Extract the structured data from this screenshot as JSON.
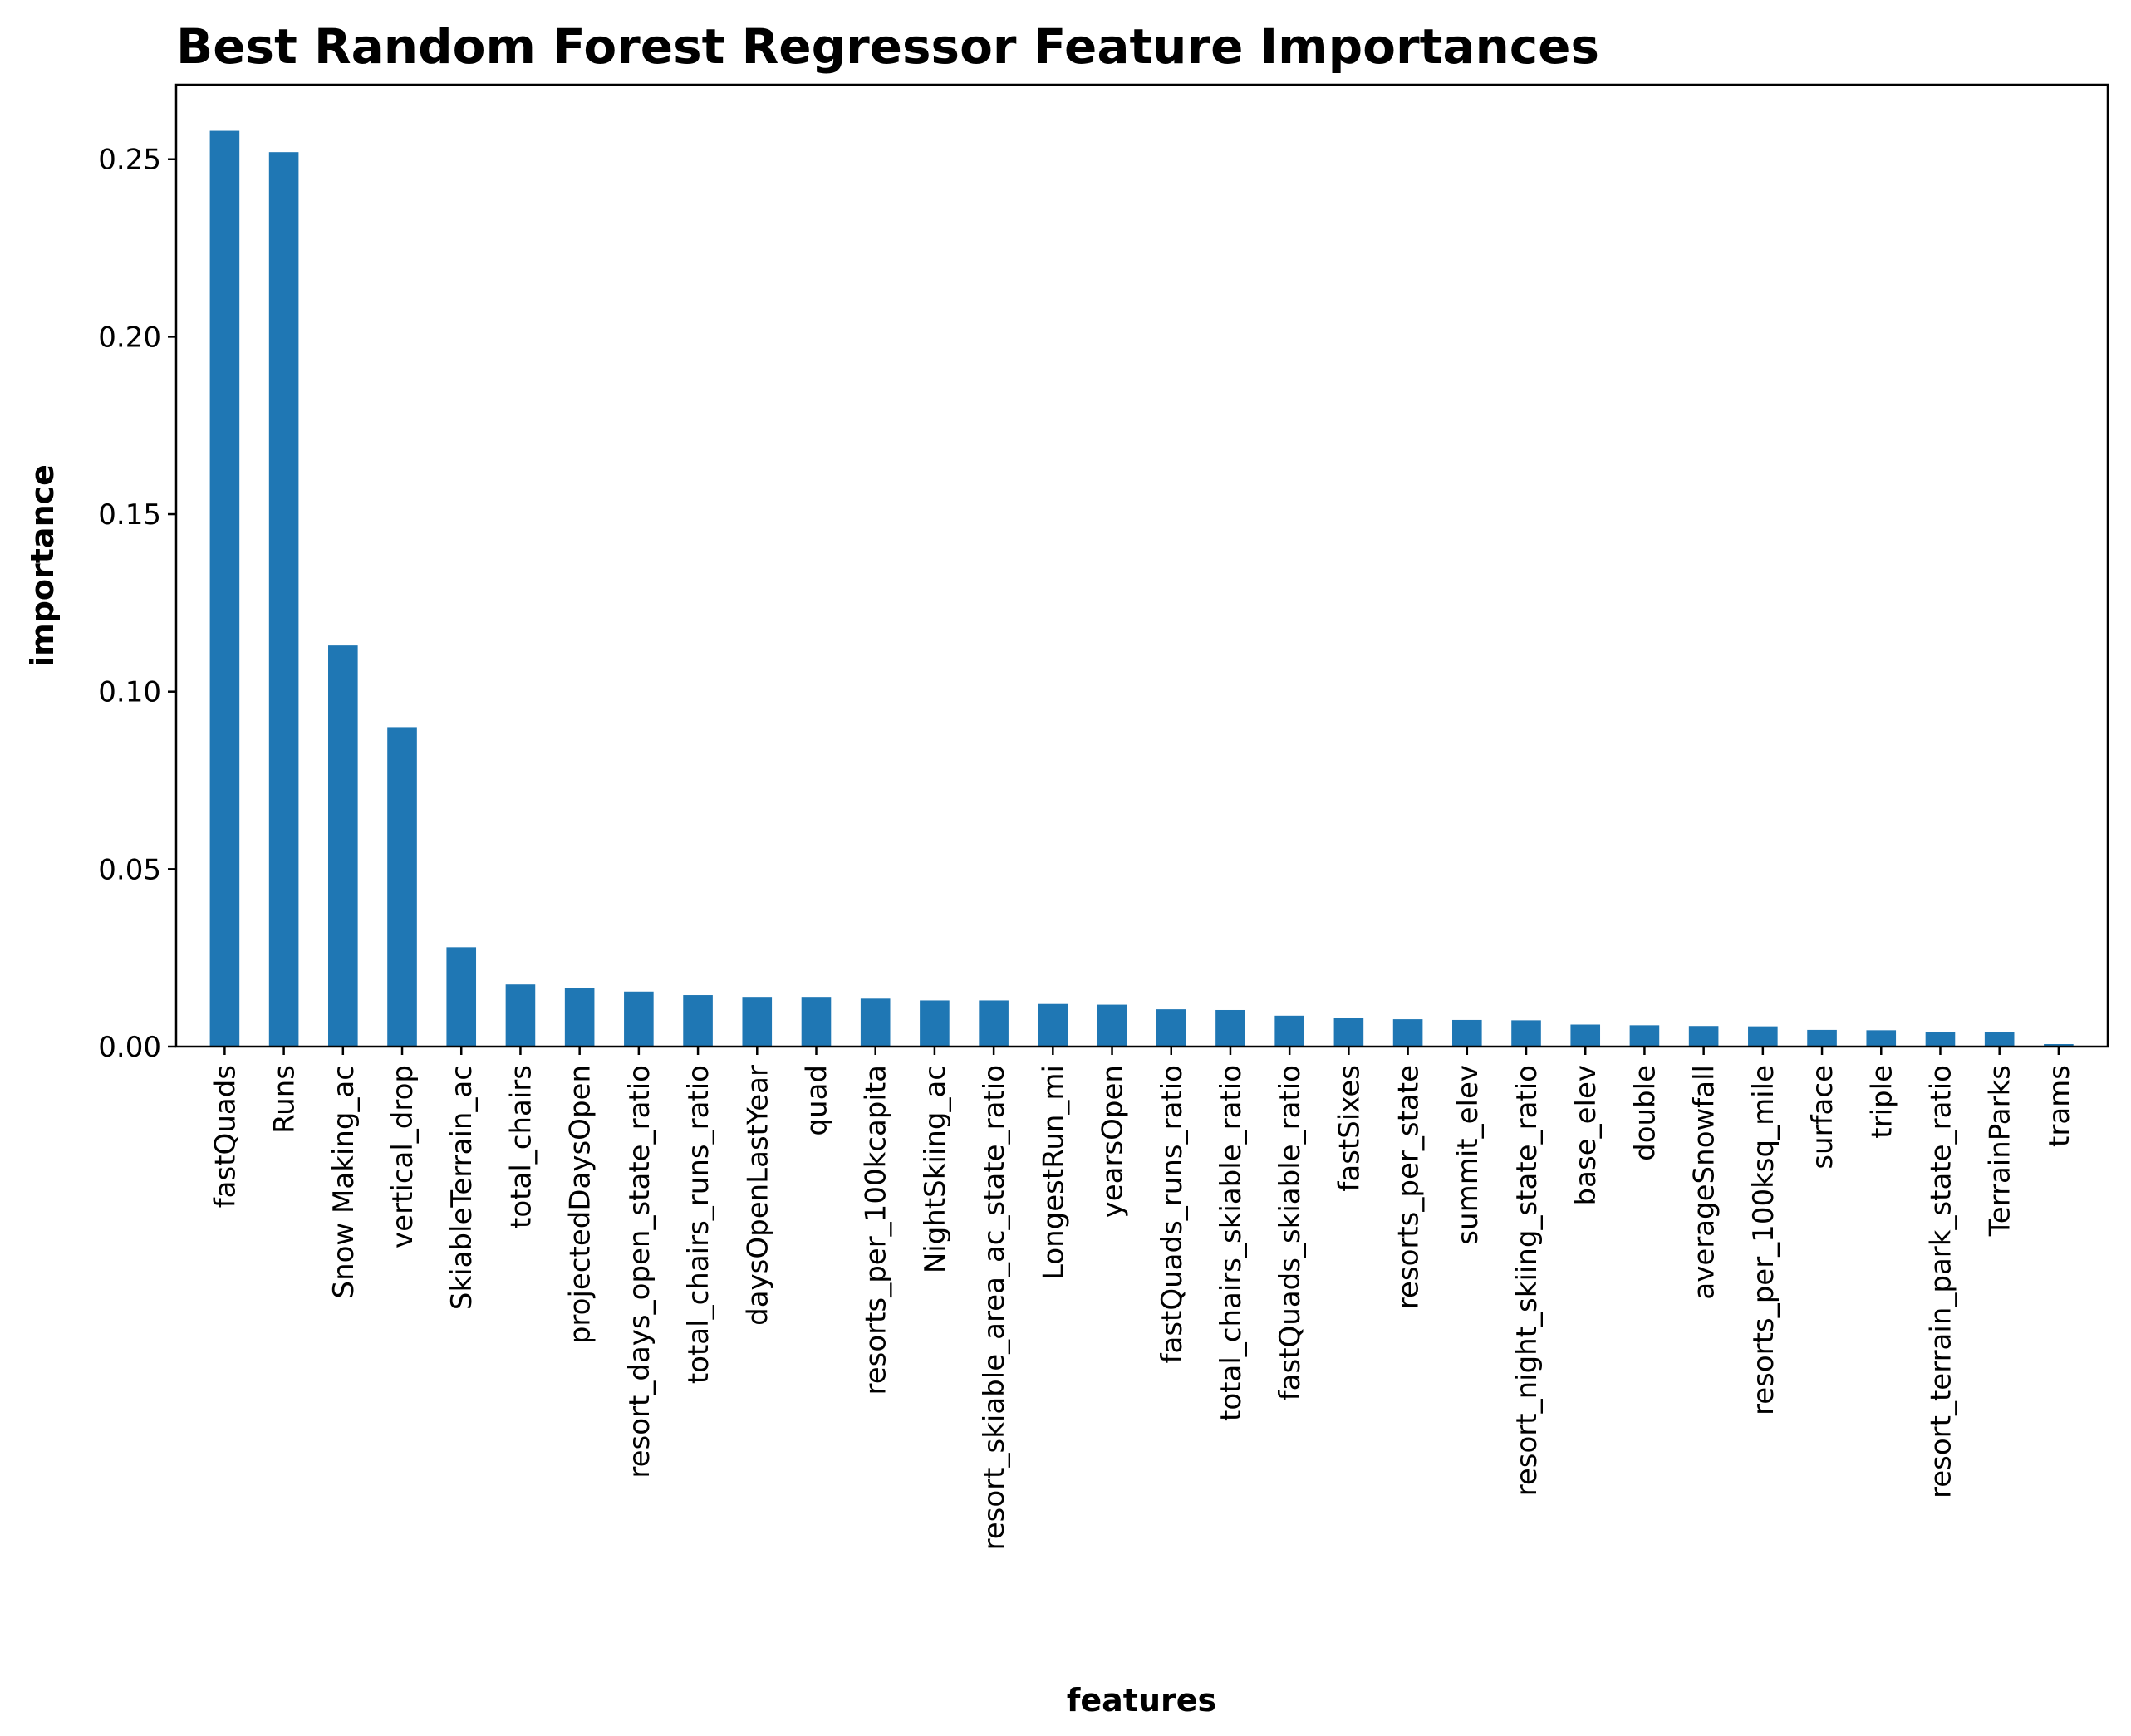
{
  "chart_data": {
    "type": "bar",
    "title": "Best Random Forest Regressor Feature Importances",
    "xlabel": "features",
    "ylabel": "importance",
    "ylim": [
      0,
      0.271
    ],
    "yticks": [
      "0.00",
      "0.05",
      "0.10",
      "0.15",
      "0.20",
      "0.25"
    ],
    "grid": false,
    "bar_color": "#1f77b4",
    "categories": [
      "fastQuads",
      "Runs",
      "Snow Making_ac",
      "vertical_drop",
      "SkiableTerrain_ac",
      "total_chairs",
      "projectedDaysOpen",
      "resort_days_open_state_ratio",
      "total_chairs_runs_ratio",
      "daysOpenLastYear",
      "quad",
      "resorts_per_100kcapita",
      "NightSkiing_ac",
      "resort_skiable_area_ac_state_ratio",
      "LongestRun_mi",
      "yearsOpen",
      "fastQuads_runs_ratio",
      "total_chairs_skiable_ratio",
      "fastQuads_skiable_ratio",
      "fastSixes",
      "resorts_per_state",
      "summit_elev",
      "resort_night_skiing_state_ratio",
      "base_elev",
      "double",
      "averageSnowfall",
      "resorts_per_100ksq_mile",
      "surface",
      "triple",
      "resort_terrain_park_state_ratio",
      "TerrainParks",
      "trams"
    ],
    "values": [
      0.258,
      0.252,
      0.113,
      0.09,
      0.028,
      0.0175,
      0.0165,
      0.0155,
      0.0145,
      0.014,
      0.014,
      0.0135,
      0.013,
      0.013,
      0.012,
      0.0118,
      0.0105,
      0.0103,
      0.0087,
      0.008,
      0.0077,
      0.0075,
      0.0074,
      0.0062,
      0.006,
      0.0058,
      0.0057,
      0.0047,
      0.0046,
      0.0042,
      0.004,
      0.0007
    ]
  }
}
